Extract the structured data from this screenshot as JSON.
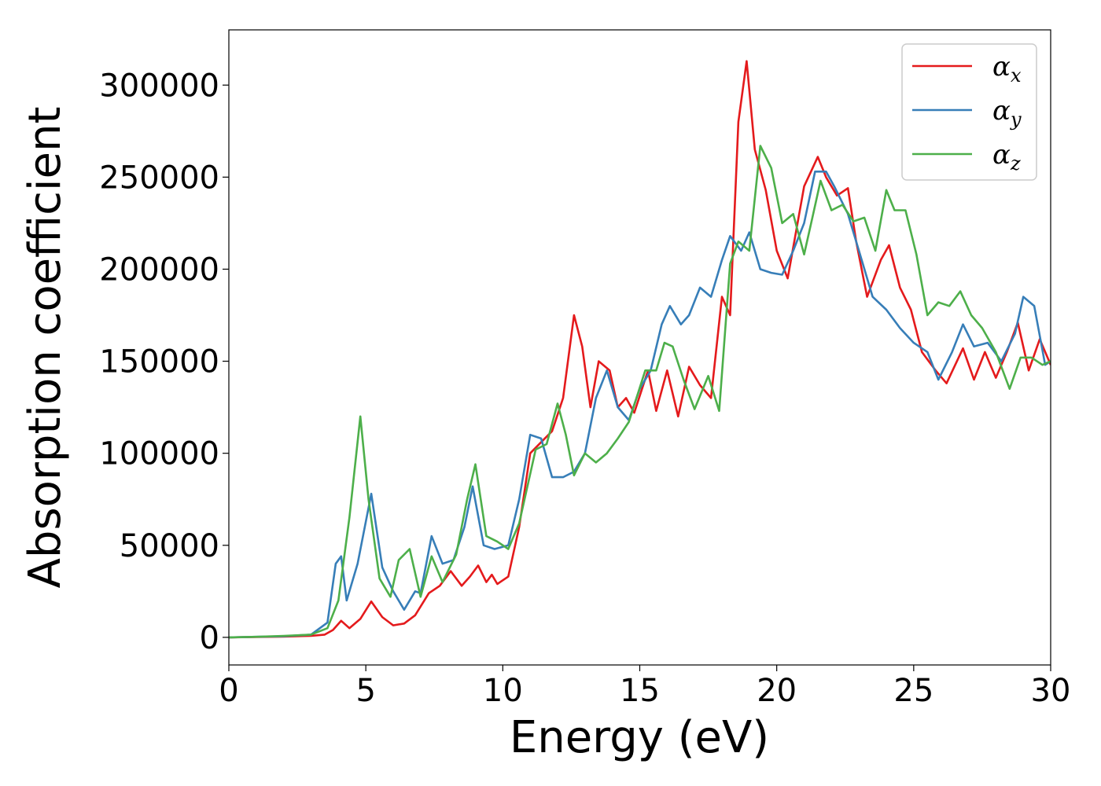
{
  "chart_data": {
    "type": "line",
    "xlabel": "Energy (eV)",
    "ylabel": "Absorption coefficient",
    "xlim": [
      0,
      30
    ],
    "ylim": [
      -15000,
      330000
    ],
    "xticks": [
      0,
      5,
      10,
      15,
      20,
      25,
      30
    ],
    "yticks": [
      0,
      50000,
      100000,
      150000,
      200000,
      250000,
      300000
    ],
    "grid": false,
    "legend_position": "top-right",
    "series": [
      {
        "name": "α_x",
        "label_main": "α",
        "label_sub": "x",
        "color": "#e41a1c",
        "points": [
          [
            0,
            0
          ],
          [
            1,
            200
          ],
          [
            2,
            400
          ],
          [
            3,
            800
          ],
          [
            3.5,
            1500
          ],
          [
            3.8,
            4000
          ],
          [
            4.1,
            9000
          ],
          [
            4.4,
            5000
          ],
          [
            4.8,
            10000
          ],
          [
            5.2,
            19500
          ],
          [
            5.6,
            11000
          ],
          [
            6,
            6500
          ],
          [
            6.4,
            7500
          ],
          [
            6.8,
            12000
          ],
          [
            7.3,
            24000
          ],
          [
            7.7,
            28000
          ],
          [
            8.1,
            36000
          ],
          [
            8.5,
            28000
          ],
          [
            8.8,
            33000
          ],
          [
            9.1,
            39000
          ],
          [
            9.4,
            30000
          ],
          [
            9.6,
            34000
          ],
          [
            9.8,
            29000
          ],
          [
            10.2,
            33000
          ],
          [
            10.6,
            60000
          ],
          [
            11,
            100000
          ],
          [
            11.4,
            106000
          ],
          [
            11.8,
            112000
          ],
          [
            12.2,
            130000
          ],
          [
            12.6,
            175000
          ],
          [
            12.9,
            158000
          ],
          [
            13.2,
            125000
          ],
          [
            13.5,
            150000
          ],
          [
            13.9,
            145000
          ],
          [
            14.2,
            125000
          ],
          [
            14.5,
            130000
          ],
          [
            14.8,
            122000
          ],
          [
            15.3,
            145000
          ],
          [
            15.6,
            123000
          ],
          [
            16,
            145000
          ],
          [
            16.4,
            120000
          ],
          [
            16.8,
            147000
          ],
          [
            17.2,
            137000
          ],
          [
            17.6,
            130000
          ],
          [
            18,
            185000
          ],
          [
            18.3,
            175000
          ],
          [
            18.6,
            280000
          ],
          [
            18.9,
            313000
          ],
          [
            19.2,
            265000
          ],
          [
            19.6,
            243000
          ],
          [
            20,
            210000
          ],
          [
            20.4,
            195000
          ],
          [
            21,
            245000
          ],
          [
            21.5,
            261000
          ],
          [
            21.8,
            250000
          ],
          [
            22.2,
            240000
          ],
          [
            22.6,
            244000
          ],
          [
            22.9,
            215000
          ],
          [
            23.3,
            185000
          ],
          [
            23.8,
            205000
          ],
          [
            24.1,
            213000
          ],
          [
            24.5,
            190000
          ],
          [
            24.9,
            178000
          ],
          [
            25.3,
            155000
          ],
          [
            25.8,
            145000
          ],
          [
            26.2,
            138000
          ],
          [
            26.8,
            157000
          ],
          [
            27.2,
            140000
          ],
          [
            27.6,
            155000
          ],
          [
            28,
            141000
          ],
          [
            28.4,
            155000
          ],
          [
            28.8,
            171000
          ],
          [
            29.2,
            145000
          ],
          [
            29.6,
            162000
          ],
          [
            30,
            148000
          ]
        ]
      },
      {
        "name": "α_y",
        "label_main": "α",
        "label_sub": "y",
        "color": "#377eb8",
        "points": [
          [
            0,
            0
          ],
          [
            1,
            300
          ],
          [
            2,
            600
          ],
          [
            3,
            1500
          ],
          [
            3.6,
            8000
          ],
          [
            3.9,
            40000
          ],
          [
            4.1,
            44000
          ],
          [
            4.3,
            20000
          ],
          [
            4.7,
            40000
          ],
          [
            5.2,
            78000
          ],
          [
            5.6,
            38000
          ],
          [
            6,
            25000
          ],
          [
            6.4,
            15000
          ],
          [
            6.8,
            25000
          ],
          [
            7,
            24000
          ],
          [
            7.4,
            55000
          ],
          [
            7.8,
            40000
          ],
          [
            8.2,
            42000
          ],
          [
            8.6,
            60000
          ],
          [
            8.9,
            82000
          ],
          [
            9.3,
            50000
          ],
          [
            9.7,
            48000
          ],
          [
            10.2,
            50000
          ],
          [
            10.6,
            75000
          ],
          [
            11,
            110000
          ],
          [
            11.4,
            108000
          ],
          [
            11.8,
            87000
          ],
          [
            12.2,
            87000
          ],
          [
            12.6,
            90000
          ],
          [
            13,
            100000
          ],
          [
            13.4,
            130000
          ],
          [
            13.8,
            145000
          ],
          [
            14.2,
            125000
          ],
          [
            14.6,
            118000
          ],
          [
            15,
            135000
          ],
          [
            15.4,
            145000
          ],
          [
            15.8,
            170000
          ],
          [
            16.1,
            180000
          ],
          [
            16.5,
            170000
          ],
          [
            16.8,
            175000
          ],
          [
            17.2,
            190000
          ],
          [
            17.6,
            185000
          ],
          [
            18,
            205000
          ],
          [
            18.3,
            218000
          ],
          [
            18.7,
            210000
          ],
          [
            19,
            220000
          ],
          [
            19.4,
            200000
          ],
          [
            19.8,
            198000
          ],
          [
            20.2,
            197000
          ],
          [
            20.6,
            210000
          ],
          [
            21,
            225000
          ],
          [
            21.4,
            253000
          ],
          [
            21.8,
            253000
          ],
          [
            22.1,
            245000
          ],
          [
            22.6,
            230000
          ],
          [
            23,
            210000
          ],
          [
            23.5,
            185000
          ],
          [
            24,
            178000
          ],
          [
            24.5,
            168000
          ],
          [
            25,
            160000
          ],
          [
            25.5,
            155000
          ],
          [
            25.9,
            140000
          ],
          [
            26.4,
            155000
          ],
          [
            26.8,
            170000
          ],
          [
            27.2,
            158000
          ],
          [
            27.7,
            160000
          ],
          [
            28.2,
            150000
          ],
          [
            28.7,
            165000
          ],
          [
            29,
            185000
          ],
          [
            29.4,
            180000
          ],
          [
            29.8,
            148000
          ],
          [
            30,
            150000
          ]
        ]
      },
      {
        "name": "α_z",
        "label_main": "α",
        "label_sub": "z",
        "color": "#4daf4a",
        "points": [
          [
            0,
            0
          ],
          [
            1,
            300
          ],
          [
            2,
            800
          ],
          [
            3,
            1500
          ],
          [
            3.6,
            5000
          ],
          [
            4,
            20000
          ],
          [
            4.4,
            65000
          ],
          [
            4.8,
            120000
          ],
          [
            5.1,
            75000
          ],
          [
            5.5,
            32000
          ],
          [
            5.9,
            22000
          ],
          [
            6.2,
            42000
          ],
          [
            6.6,
            48000
          ],
          [
            7,
            22000
          ],
          [
            7.4,
            44000
          ],
          [
            7.8,
            30000
          ],
          [
            8.3,
            45000
          ],
          [
            8.7,
            75000
          ],
          [
            9,
            94000
          ],
          [
            9.4,
            55000
          ],
          [
            9.8,
            52000
          ],
          [
            10.2,
            48000
          ],
          [
            10.6,
            62000
          ],
          [
            11.2,
            102000
          ],
          [
            11.6,
            105000
          ],
          [
            12,
            127000
          ],
          [
            12.3,
            110000
          ],
          [
            12.6,
            88000
          ],
          [
            13,
            100000
          ],
          [
            13.4,
            95000
          ],
          [
            13.8,
            100000
          ],
          [
            14.2,
            108000
          ],
          [
            14.6,
            117000
          ],
          [
            15.2,
            145000
          ],
          [
            15.6,
            145000
          ],
          [
            15.9,
            160000
          ],
          [
            16.2,
            158000
          ],
          [
            16.6,
            140000
          ],
          [
            17,
            124000
          ],
          [
            17.5,
            142000
          ],
          [
            17.9,
            123000
          ],
          [
            18.3,
            203000
          ],
          [
            18.6,
            215000
          ],
          [
            19,
            210000
          ],
          [
            19.4,
            267000
          ],
          [
            19.8,
            255000
          ],
          [
            20.2,
            225000
          ],
          [
            20.6,
            230000
          ],
          [
            21,
            208000
          ],
          [
            21.3,
            228000
          ],
          [
            21.6,
            248000
          ],
          [
            22,
            232000
          ],
          [
            22.4,
            235000
          ],
          [
            22.8,
            226000
          ],
          [
            23.2,
            228000
          ],
          [
            23.6,
            210000
          ],
          [
            24,
            243000
          ],
          [
            24.3,
            232000
          ],
          [
            24.7,
            232000
          ],
          [
            25.1,
            208000
          ],
          [
            25.5,
            175000
          ],
          [
            25.9,
            182000
          ],
          [
            26.3,
            180000
          ],
          [
            26.7,
            188000
          ],
          [
            27.1,
            175000
          ],
          [
            27.5,
            168000
          ],
          [
            28,
            155000
          ],
          [
            28.5,
            135000
          ],
          [
            28.9,
            152000
          ],
          [
            29.3,
            152000
          ],
          [
            29.7,
            148000
          ],
          [
            30,
            150000
          ]
        ]
      }
    ]
  }
}
